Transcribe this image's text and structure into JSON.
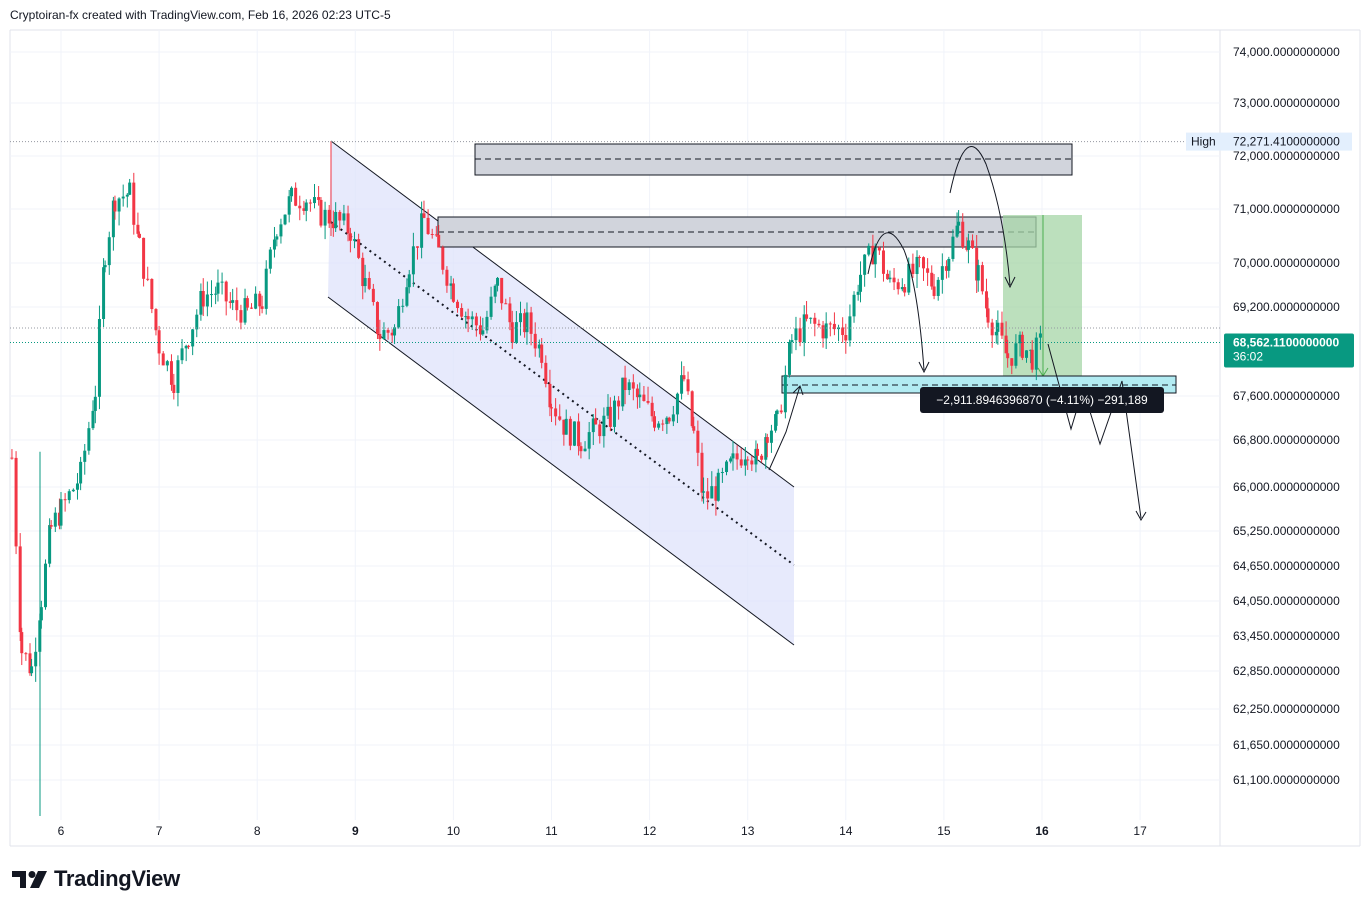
{
  "header": {
    "text": "Cryptoiran-fx created with TradingView.com, Feb 16, 2026 02:23 UTC-5"
  },
  "footer": {
    "brand": "TradingView"
  },
  "colors": {
    "up": "#089981",
    "down": "#f23645",
    "price_badge": "#089981",
    "grid": "#f0f3fa",
    "channel_fill": "#dfe3fb",
    "target_zone": "#a5d6a7",
    "support_zone": "#b2ebf2",
    "resistance_zone": "#d1d4dc"
  },
  "chart_data": {
    "type": "candlestick",
    "y_ticks": [
      {
        "label": "74,000.0000000000",
        "value": 74000
      },
      {
        "label": "73,000.0000000000",
        "value": 73000
      },
      {
        "label": "72,000.0000000000",
        "value": 72000
      },
      {
        "label": "71,000.0000000000",
        "value": 71000
      },
      {
        "label": "70,000.0000000000",
        "value": 70000
      },
      {
        "label": "69,200.0000000000",
        "value": 69200
      },
      {
        "label": "67,600.0000000000",
        "value": 67600
      },
      {
        "label": "66,800.0000000000",
        "value": 66800
      },
      {
        "label": "66,000.0000000000",
        "value": 66000
      },
      {
        "label": "65,250.0000000000",
        "value": 65250
      },
      {
        "label": "64,650.0000000000",
        "value": 64650
      },
      {
        "label": "64,050.0000000000",
        "value": 64050
      },
      {
        "label": "63,450.0000000000",
        "value": 63450
      },
      {
        "label": "62,850.0000000000",
        "value": 62850
      },
      {
        "label": "62,250.0000000000",
        "value": 62250
      },
      {
        "label": "61,650.0000000000",
        "value": 61650
      },
      {
        "label": "61,100.0000000000",
        "value": 61100
      }
    ],
    "x_ticks": [
      {
        "label": "6",
        "day": 6,
        "bold": false
      },
      {
        "label": "7",
        "day": 7,
        "bold": false
      },
      {
        "label": "8",
        "day": 8,
        "bold": false
      },
      {
        "label": "9",
        "day": 9,
        "bold": true
      },
      {
        "label": "10",
        "day": 10,
        "bold": false
      },
      {
        "label": "11",
        "day": 11,
        "bold": false
      },
      {
        "label": "12",
        "day": 12,
        "bold": false
      },
      {
        "label": "13",
        "day": 13,
        "bold": false
      },
      {
        "label": "14",
        "day": 14,
        "bold": false
      },
      {
        "label": "15",
        "day": 15,
        "bold": false
      },
      {
        "label": "16",
        "day": 16,
        "bold": true
      },
      {
        "label": "17",
        "day": 17,
        "bold": false
      }
    ],
    "high_marker": {
      "label": "High",
      "value_label": "72,271.4100000000",
      "value": 72271.41
    },
    "last_price": {
      "label": "68,562.1100000000",
      "countdown": "36:02",
      "value": 68562.11
    },
    "measure_label": "−2,911.8946396870 (−4.11%) −291,189",
    "price_path": [
      [
        5.5,
        66500
      ],
      [
        5.6,
        63200
      ],
      [
        5.7,
        62900
      ],
      [
        5.8,
        64100
      ],
      [
        5.9,
        65300
      ],
      [
        6.0,
        65600
      ],
      [
        6.2,
        66200
      ],
      [
        6.35,
        67700
      ],
      [
        6.45,
        70200
      ],
      [
        6.55,
        71200
      ],
      [
        6.7,
        71300
      ],
      [
        6.8,
        70300
      ],
      [
        7.0,
        68500
      ],
      [
        7.15,
        67900
      ],
      [
        7.3,
        68700
      ],
      [
        7.45,
        69400
      ],
      [
        7.6,
        69500
      ],
      [
        7.75,
        69200
      ],
      [
        7.9,
        69100
      ],
      [
        8.05,
        69300
      ],
      [
        8.2,
        70700
      ],
      [
        8.35,
        71200
      ],
      [
        8.5,
        71200
      ],
      [
        8.65,
        70900
      ],
      [
        8.8,
        70800
      ],
      [
        8.95,
        70600
      ],
      [
        9.1,
        69600
      ],
      [
        9.25,
        68700
      ],
      [
        9.4,
        68800
      ],
      [
        9.55,
        70000
      ],
      [
        9.7,
        70800
      ],
      [
        9.85,
        70200
      ],
      [
        10.0,
        69500
      ],
      [
        10.15,
        69000
      ],
      [
        10.3,
        68800
      ],
      [
        10.45,
        69600
      ],
      [
        10.6,
        68800
      ],
      [
        10.75,
        68900
      ],
      [
        10.9,
        68400
      ],
      [
        11.0,
        67500
      ],
      [
        11.15,
        67000
      ],
      [
        11.3,
        66800
      ],
      [
        11.45,
        67000
      ],
      [
        11.6,
        67200
      ],
      [
        11.75,
        67800
      ],
      [
        11.9,
        67500
      ],
      [
        12.05,
        67200
      ],
      [
        12.2,
        67300
      ],
      [
        12.35,
        67900
      ],
      [
        12.45,
        66900
      ],
      [
        12.55,
        65800
      ],
      [
        12.7,
        66000
      ],
      [
        12.85,
        66400
      ],
      [
        13.0,
        66700
      ],
      [
        13.1,
        66400
      ],
      [
        13.2,
        67000
      ],
      [
        13.3,
        67100
      ],
      [
        13.45,
        68600
      ],
      [
        13.6,
        68900
      ],
      [
        13.8,
        68800
      ],
      [
        14.0,
        68800
      ],
      [
        14.15,
        69800
      ],
      [
        14.3,
        70300
      ],
      [
        14.45,
        69600
      ],
      [
        14.6,
        69700
      ],
      [
        14.75,
        69900
      ],
      [
        14.9,
        69600
      ],
      [
        15.05,
        70200
      ],
      [
        15.15,
        70700
      ],
      [
        15.25,
        70300
      ],
      [
        15.35,
        69800
      ],
      [
        15.45,
        69100
      ],
      [
        15.55,
        68700
      ],
      [
        15.65,
        68300
      ],
      [
        15.8,
        68500
      ],
      [
        15.9,
        68300
      ],
      [
        16.0,
        68562
      ]
    ]
  }
}
